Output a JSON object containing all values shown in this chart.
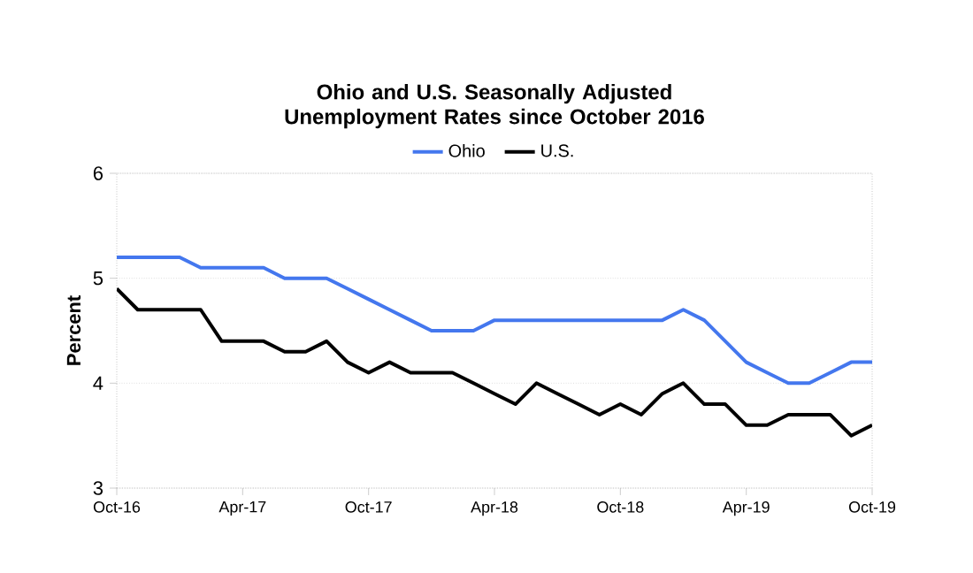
{
  "chart_data": {
    "type": "line",
    "title": "Ohio and U.S. Seasonally Adjusted Unemployment Rates since October 2016",
    "ylabel": "Percent",
    "categories": [
      "Oct-16",
      null,
      null,
      null,
      null,
      null,
      "Apr-17",
      null,
      null,
      null,
      null,
      null,
      "Oct-17",
      null,
      null,
      null,
      null,
      null,
      "Apr-18",
      null,
      null,
      null,
      null,
      null,
      "Oct-18",
      null,
      null,
      null,
      null,
      null,
      "Apr-19",
      null,
      null,
      null,
      null,
      null,
      "Oct-19"
    ],
    "series": [
      {
        "name": "Ohio",
        "color": "#4477ee",
        "values": [
          5.2,
          5.2,
          5.2,
          5.2,
          5.1,
          5.1,
          5.1,
          5.1,
          5.0,
          5.0,
          5.0,
          4.9,
          4.8,
          4.7,
          4.6,
          4.5,
          4.5,
          4.5,
          4.6,
          4.6,
          4.6,
          4.6,
          4.6,
          4.6,
          4.6,
          4.6,
          4.6,
          4.7,
          4.6,
          4.4,
          4.2,
          4.1,
          4.0,
          4.0,
          4.1,
          4.2,
          4.2
        ]
      },
      {
        "name": "U.S.",
        "color": "#000000",
        "values": [
          4.9,
          4.7,
          4.7,
          4.7,
          4.7,
          4.4,
          4.4,
          4.4,
          4.3,
          4.3,
          4.4,
          4.2,
          4.1,
          4.2,
          4.1,
          4.1,
          4.1,
          4.0,
          3.9,
          3.8,
          4.0,
          3.9,
          3.8,
          3.7,
          3.8,
          3.7,
          3.9,
          4.0,
          3.8,
          3.8,
          3.6,
          3.6,
          3.7,
          3.7,
          3.7,
          3.5,
          3.6
        ]
      }
    ],
    "ylim": [
      3,
      6
    ],
    "yticks": [
      3,
      4,
      5,
      6
    ],
    "grid": "y",
    "legend": "top",
    "marker": "none",
    "line_style": "solid"
  }
}
